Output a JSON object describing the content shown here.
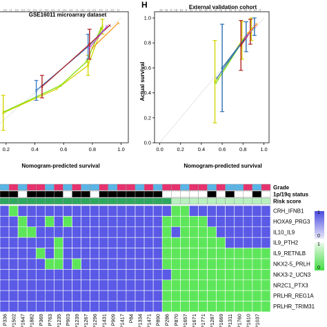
{
  "panels": [
    {
      "letter": "",
      "title": "GSE16011 microarray dataset",
      "xlabel": "Nomogram-predicted survival",
      "ylabel": "",
      "x_ticks": [
        "0.2",
        "0.4",
        "0.6",
        "0.8",
        "1.0"
      ],
      "y_ticks": []
    },
    {
      "letter": "H",
      "title": "External validation cohort",
      "xlabel": "Nomogram-predicted survival",
      "ylabel": "Actual survival",
      "x_ticks": [
        "0.0",
        "0.2",
        "0.4",
        "0.6",
        "0.8",
        "1.0"
      ],
      "y_ticks": [
        "0.0",
        "0.2",
        "0.4",
        "0.6",
        "0.8",
        "1.0"
      ]
    }
  ],
  "heatmap": {
    "row_labels": [
      "CRH_IFNB1",
      "HOXA9_PRG3",
      "IL10_IL9",
      "IL9_PTH2",
      "IL9_RETNLB",
      "NKX2-5_PRLH",
      "NKX3-2_UCN3",
      "NR2C1_PTX3",
      "PRLHR_REG1A",
      "PRLHR_TRIM31"
    ],
    "annotation_labels": [
      "Grade",
      "1p/19q status",
      "Risk score"
    ],
    "column_labels": [
      "P336",
      "P1502",
      "P1647",
      "P1882",
      "P369",
      "P763",
      "P1235",
      "P903",
      "P1239",
      "P1267",
      "P1296",
      "P1431",
      "P909",
      "P1417",
      "P84",
      "P1334",
      "P1471",
      "P890",
      "P286",
      "P870",
      "P1657",
      "P1671",
      "P1771",
      "P1287",
      "P1669",
      "P1311",
      "P1760",
      "P1610",
      "P1037",
      ""
    ],
    "legend_labels": [
      "1",
      "0",
      "1",
      "0"
    ]
  },
  "chart_data": [
    {
      "type": "line",
      "title": "GSE16011 microarray dataset",
      "xlabel": "Nomogram-predicted survival",
      "ylabel": "",
      "xlim": [
        0.1,
        1.05
      ],
      "ylim": [
        0.0,
        1.05
      ],
      "series": [
        {
          "color": "#d4d400",
          "x": [
            0.18,
            0.55,
            0.77,
            0.87
          ],
          "y": [
            0.24,
            0.43,
            0.62,
            0.93
          ],
          "err": [
            0.14,
            0.0,
            0.08,
            0.06
          ]
        },
        {
          "color": "#7fdc00",
          "x": [
            0.19,
            0.58,
            0.76,
            0.86
          ],
          "y": [
            0.25,
            0.46,
            0.65,
            0.92
          ],
          "err": [
            0.0,
            0.0,
            0.0,
            0.0
          ]
        },
        {
          "color": "#3a7ec6",
          "x": [
            0.41,
            0.77,
            0.9
          ],
          "y": [
            0.42,
            0.77,
            0.93
          ],
          "err": [
            0.08,
            0.1,
            0.0
          ]
        },
        {
          "color": "#b22222",
          "x": [
            0.45,
            0.78,
            0.92
          ],
          "y": [
            0.45,
            0.79,
            0.94
          ],
          "err": [
            0.09,
            0.12,
            0.0
          ]
        },
        {
          "color": "#c04bd8",
          "x": [
            0.78,
            0.9
          ],
          "y": [
            0.76,
            0.93
          ],
          "err": [
            0.0,
            0.0
          ]
        },
        {
          "color": "#f39a1e",
          "x": [
            0.8,
            0.98
          ],
          "y": [
            0.76,
            0.96
          ],
          "err": [
            0.0,
            0.0
          ]
        }
      ]
    },
    {
      "type": "line",
      "title": "External validation cohort",
      "xlabel": "Nomogram-predicted survival",
      "ylabel": "Actual survival",
      "xlim": [
        -0.05,
        1.05
      ],
      "ylim": [
        0.0,
        1.05
      ],
      "series": [
        {
          "color": "#d4d400",
          "x": [
            0.53,
            0.79,
            0.88
          ],
          "y": [
            0.49,
            0.82,
            0.91
          ],
          "err": [
            0.33,
            0.15,
            0.09
          ]
        },
        {
          "color": "#7fdc00",
          "x": [
            0.54,
            0.8,
            0.89
          ],
          "y": [
            0.48,
            0.82,
            0.91
          ],
          "err": [
            0.0,
            0.0,
            0.0
          ]
        },
        {
          "color": "#3a7ec6",
          "x": [
            0.55,
            0.82,
            0.9
          ],
          "y": [
            0.52,
            0.84,
            0.92
          ],
          "err": [
            0.0,
            0.0,
            0.0
          ]
        },
        {
          "color": "#2a6db0",
          "x": [
            0.6,
            0.83,
            0.91
          ],
          "y": [
            0.6,
            0.85,
            0.93
          ],
          "err": [
            0.35,
            0.12,
            0.07
          ]
        },
        {
          "color": "#b22222",
          "x": [
            0.78,
            0.87
          ],
          "y": [
            0.78,
            0.89
          ],
          "err": [
            0.2,
            0.1
          ]
        },
        {
          "color": "#c04bd8",
          "x": [
            0.82,
            0.92
          ],
          "y": [
            0.84,
            0.94
          ],
          "err": [
            0.0,
            0.0
          ]
        },
        {
          "color": "#f39a1e",
          "x": [
            0.85,
            0.93
          ],
          "y": [
            0.88,
            0.95
          ],
          "err": [
            0.0,
            0.0
          ]
        }
      ]
    },
    {
      "type": "heatmap",
      "rows": [
        "CRH_IFNB1",
        "HOXA9_PRG3",
        "IL10_IL9",
        "IL9_PTH2",
        "IL9_RETNLB",
        "NKX2-5_PRLH",
        "NKX3-2_UCN3",
        "NR2C1_PTX3",
        "PRLHR_REG1A",
        "PRLHR_TRIM31"
      ],
      "matrix": [
        [
          0,
          1,
          0,
          0,
          0,
          0,
          0,
          0,
          0,
          0,
          0,
          0,
          0,
          0,
          0,
          0,
          0,
          0,
          0,
          1,
          1,
          0,
          0,
          0,
          0,
          0,
          0,
          0,
          0,
          0
        ],
        [
          0,
          0,
          1,
          0,
          0,
          1,
          0,
          1,
          0,
          0,
          0,
          0,
          0,
          0,
          0,
          0,
          0,
          0,
          1,
          1,
          1,
          1,
          1,
          0,
          0,
          0,
          0,
          0,
          0,
          0
        ],
        [
          0,
          0,
          1,
          1,
          0,
          0,
          0,
          0,
          0,
          0,
          0,
          0,
          0,
          0,
          0,
          0,
          0,
          0,
          1,
          0,
          1,
          1,
          1,
          1,
          0,
          0,
          0,
          0,
          0,
          0
        ],
        [
          0,
          0,
          0,
          0,
          0,
          0,
          1,
          0,
          0,
          0,
          0,
          0,
          0,
          0,
          0,
          0,
          0,
          0,
          1,
          1,
          1,
          1,
          1,
          1,
          1,
          0,
          0,
          0,
          0,
          0
        ],
        [
          0,
          0,
          0,
          0,
          1,
          0,
          1,
          0,
          0,
          0,
          0,
          0,
          0,
          0,
          0,
          0,
          0,
          0,
          1,
          1,
          1,
          1,
          1,
          1,
          1,
          1,
          1,
          1,
          1,
          1
        ],
        [
          0,
          0,
          0,
          0,
          0,
          1,
          1,
          0,
          1,
          0,
          0,
          0,
          0,
          0,
          0,
          0,
          0,
          0,
          1,
          1,
          1,
          1,
          1,
          1,
          1,
          1,
          1,
          1,
          1,
          1
        ],
        [
          0,
          0,
          0,
          0,
          0,
          0,
          0,
          0,
          0,
          0,
          0,
          0,
          0,
          0,
          0,
          0,
          0,
          0,
          0,
          1,
          1,
          1,
          1,
          1,
          1,
          1,
          1,
          1,
          1,
          1
        ],
        [
          0,
          0,
          0,
          0,
          0,
          0,
          0,
          0,
          0,
          0,
          0,
          0,
          0,
          0,
          0,
          0,
          0,
          0,
          1,
          1,
          1,
          1,
          1,
          1,
          1,
          1,
          1,
          1,
          1,
          1
        ],
        [
          0,
          0,
          0,
          0,
          0,
          0,
          0,
          0,
          0,
          0,
          0,
          0,
          0,
          0,
          0,
          0,
          0,
          0,
          1,
          1,
          1,
          1,
          1,
          1,
          1,
          1,
          1,
          1,
          1,
          1
        ],
        [
          0,
          0,
          0,
          0,
          0,
          0,
          0,
          0,
          0,
          0,
          0,
          0,
          0,
          0,
          0,
          0,
          0,
          0,
          1,
          1,
          1,
          1,
          1,
          1,
          1,
          1,
          1,
          1,
          1,
          1
        ]
      ],
      "annotations": {
        "Grade": [
          "blue",
          "red",
          "blue",
          "red",
          "red",
          "blue",
          "red",
          "blue",
          "red",
          "blue",
          "blue",
          "red",
          "blue",
          "red",
          "red",
          "blue",
          "red",
          "blue",
          "red",
          "red",
          "blue",
          "red",
          "red",
          "blue",
          "red",
          "blue",
          "blue",
          "red",
          "blue",
          "red"
        ],
        "1p/19q status": [
          "black",
          "black",
          "white",
          "black",
          "black",
          "black",
          "black",
          "white",
          "black",
          "black",
          "white",
          "black",
          "black",
          "black",
          "black",
          "black",
          "black",
          "black",
          "white",
          "white",
          "white",
          "white",
          "white",
          "black",
          "white",
          "black",
          "white",
          "white",
          "black",
          "white"
        ],
        "Risk score": [
          "green",
          "green",
          "green",
          "green",
          "green",
          "green",
          "green",
          "green",
          "green",
          "green",
          "green",
          "green",
          "green",
          "green",
          "green",
          "green",
          "green",
          "green",
          "green",
          "lightgreen",
          "lightgreen",
          "lightgreen",
          "lightgreen",
          "lightgreen",
          "lightgreen",
          "lightgreen",
          "lightgreen",
          "lightgreen",
          "lightgreen",
          "lightgreen"
        ]
      },
      "colors": {
        "high": "#5a5ae6",
        "low": "#5ee65a",
        "grade_blue": "#5ab4e6",
        "grade_red": "#e6326e",
        "status_black": "#000000",
        "status_white": "#ffffff",
        "risk_dark": "#2ea860",
        "risk_light": "#b8f0c0"
      }
    }
  ]
}
